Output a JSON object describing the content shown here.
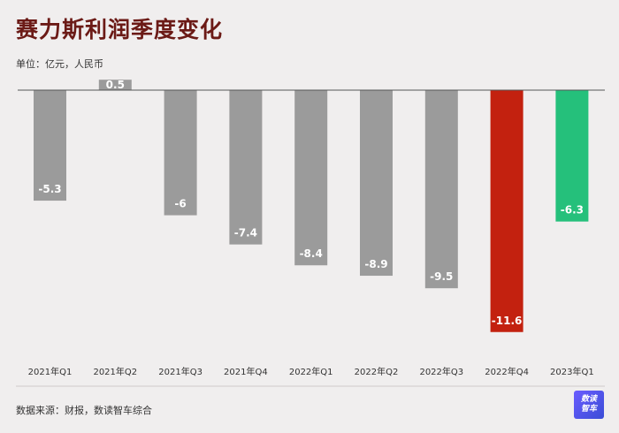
{
  "header": {
    "title": "赛力斯利润季度变化",
    "unit": "单位：亿元，人民币"
  },
  "footer": {
    "source": "数据来源：财报，数读智车综合",
    "logo_line1": "数读",
    "logo_line2": "智车"
  },
  "chart_data": {
    "type": "bar",
    "title": "赛力斯利润季度变化",
    "ylabel": "单位：亿元，人民币",
    "categories": [
      "2021年Q1",
      "2021年Q2",
      "2021年Q3",
      "2021年Q4",
      "2022年Q1",
      "2022年Q2",
      "2022年Q3",
      "2022年Q4",
      "2023年Q1"
    ],
    "values": [
      -5.3,
      0.5,
      -6,
      -7.4,
      -8.4,
      -8.9,
      -9.5,
      -11.6,
      -6.3
    ],
    "labels": [
      "-5.3",
      "0.5",
      "-6",
      "-7.4",
      "-8.4",
      "-8.9",
      "-9.5",
      "-11.6",
      "-6.3"
    ],
    "colors": [
      "#9b9b9b",
      "#9b9b9b",
      "#9b9b9b",
      "#9b9b9b",
      "#9b9b9b",
      "#9b9b9b",
      "#9b9b9b",
      "#c3210f",
      "#25c07b"
    ],
    "ylim": [
      -12.5,
      0.6
    ],
    "grid": false,
    "legend": "none"
  }
}
